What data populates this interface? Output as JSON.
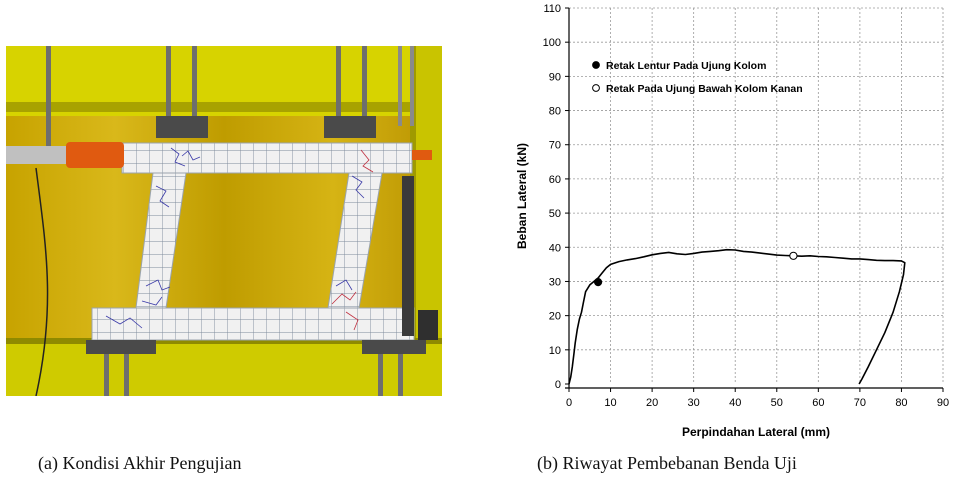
{
  "figure": {
    "caption_a": "(a)   Kondisi Akhir Pengujian",
    "caption_b": "(b)   Riwayat Pembebanan Benda Uji"
  },
  "photo": {
    "colors": {
      "frame": "#d7d300",
      "frame_dark": "#a8a200",
      "backdrop": "#c9a800",
      "specimen": "#f1f1f1",
      "grid": "#7d8a9a",
      "steel": "#5a5a5a",
      "jack": "#e05a10"
    }
  },
  "chart_data": {
    "type": "line",
    "xlabel": "Perpindahan Lateral (mm)",
    "ylabel": "Beban Lateral (kN)",
    "xlim": [
      0,
      90
    ],
    "ylim": [
      0,
      110
    ],
    "xticks": [
      0,
      10,
      20,
      30,
      40,
      50,
      60,
      70,
      80,
      90
    ],
    "yticks": [
      0,
      10,
      20,
      30,
      40,
      50,
      60,
      70,
      80,
      90,
      100,
      110
    ],
    "grid": true,
    "legend_position": "top-left",
    "series": [
      {
        "name": "",
        "x": [
          0,
          0.4,
          0.8,
          1.2,
          1.5,
          2.0,
          2.5,
          3.0,
          3.5,
          4.0,
          5.0,
          6.0,
          7.0,
          8.0,
          9.0,
          10.0,
          12.0,
          14.0,
          16.0,
          18.0,
          20.0,
          22.0,
          24.0,
          26.0,
          28.0,
          30.0,
          32.0,
          34.0,
          36.0,
          38.0,
          40.0,
          42.0,
          44.0,
          46.0,
          48.0,
          50.0,
          52.0,
          54.0,
          56.0,
          58.0,
          60.0,
          62.0,
          64.0,
          66.0,
          68.0,
          70.0,
          72.0,
          74.0,
          76.0,
          78.0,
          80.0,
          80.8,
          80.5,
          79.5,
          78.0,
          76.0,
          74.0,
          72.0,
          70.5,
          69.8
        ],
        "y": [
          0,
          2,
          5,
          9,
          12,
          16,
          19,
          21,
          24,
          27,
          29,
          30,
          31,
          32.5,
          34,
          35,
          35.8,
          36.3,
          36.7,
          37.2,
          37.8,
          38.2,
          38.5,
          38.1,
          37.9,
          38.2,
          38.6,
          38.8,
          39.0,
          39.3,
          39.2,
          38.8,
          38.6,
          38.3,
          38.0,
          37.7,
          37.6,
          37.5,
          37.4,
          37.5,
          37.3,
          37.2,
          37.0,
          36.8,
          36.6,
          36.6,
          36.4,
          36.2,
          36.1,
          36.1,
          36.0,
          35.5,
          32,
          27,
          21,
          15,
          10,
          5,
          1.5,
          0
        ]
      }
    ],
    "markers": [
      {
        "label": "Retak Lentur Pada Ujung Kolom",
        "x": 7,
        "y": 29.8,
        "fill": "filled",
        "color": "#000000"
      },
      {
        "label": "Retak Pada Ujung Bawah Kolom Kanan",
        "x": 54,
        "y": 37.5,
        "fill": "hollow",
        "color": "#000000"
      }
    ]
  }
}
